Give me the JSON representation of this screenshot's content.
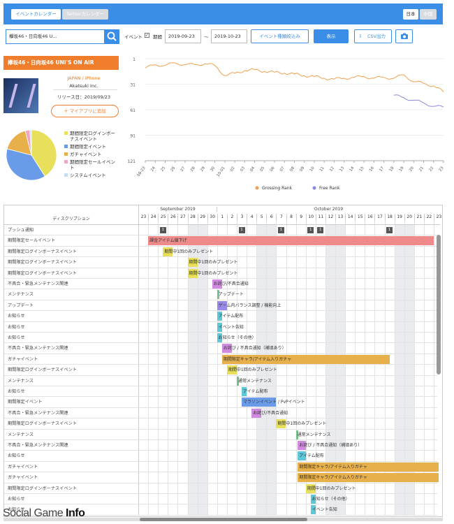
{
  "topbar": {
    "tab_calendar": "イベントカレンダー",
    "tab_twitter": "Twitterカレンダー",
    "lang_ja": "日本",
    "lang_zh": "中国"
  },
  "filter": {
    "search_value": "欅坂46・日向坂46 U...",
    "event_label": "イベント",
    "period_label": "期間",
    "date_from": "2019-09-23",
    "tilde": "〜",
    "date_to": "2019-10-23",
    "type_filter": "イベント種類絞込み",
    "show": "表示",
    "csv": "CSV出力"
  },
  "app": {
    "title": "欅坂46・日向坂46 UNI'S ON AIR",
    "platform": "JAPAN / iPhone",
    "publisher": "Akatsuki Inc.",
    "release": "リリース日：2019/09/23",
    "add_button": "＋ マイアプリに追加"
  },
  "pie": {
    "legend": [
      "期間限定ログインボーナスイベント",
      "期間限定イベント",
      "ガチャイベント",
      "期間限定セールイベント",
      "システムイベント"
    ],
    "colors": [
      "#e8e05a",
      "#6a9be8",
      "#e8b04a",
      "#f2a6c0",
      "#c6ddf2"
    ],
    "values": [
      0.41,
      0.38,
      0.17,
      0.03,
      0.01
    ]
  },
  "chart_data": {
    "type": "line",
    "y_ticks": [
      "1",
      "31",
      "61",
      "91",
      "121"
    ],
    "ylim": [
      1,
      121
    ],
    "x": [
      "09-23",
      "24",
      "25",
      "26",
      "27",
      "28",
      "29",
      "30",
      "10-01",
      "02",
      "03",
      "04",
      "05",
      "06",
      "07",
      "08",
      "09",
      "10",
      "11",
      "12",
      "13",
      "14",
      "15",
      "16",
      "17",
      "18",
      "19",
      "20",
      "21",
      "22",
      "23"
    ],
    "series": [
      {
        "name": "Grossing Rank",
        "color": "#f0a050",
        "values": [
          12,
          8,
          9,
          6,
          8,
          8,
          7,
          9,
          21,
          18,
          15,
          14,
          16,
          17,
          18,
          19,
          21,
          22,
          24,
          25,
          24,
          23,
          22,
          24,
          23,
          24,
          20,
          28,
          30,
          33,
          40
        ]
      },
      {
        "name": "Free Rank",
        "color": "#8a8ae0",
        "values": [
          0,
          0,
          0,
          0,
          0,
          0,
          0,
          0,
          0,
          0,
          0,
          0,
          0,
          0,
          0,
          0,
          0,
          0,
          0,
          0,
          0,
          0,
          0,
          0,
          0,
          44,
          47,
          50,
          53,
          57,
          58
        ]
      }
    ]
  },
  "gantt": {
    "month_sep": "September 2019",
    "month_oct": "October 2019",
    "desc_header": "ディスクリプション",
    "days": [
      "23",
      "24",
      "25",
      "26",
      "27",
      "28",
      "29",
      "30",
      "1",
      "2",
      "3",
      "4",
      "5",
      "6",
      "7",
      "8",
      "9",
      "10",
      "11",
      "12",
      "13",
      "14",
      "15",
      "16",
      "17",
      "18",
      "19",
      "20",
      "21",
      "22",
      "23"
    ],
    "push_row": "プッシュ通知",
    "push_count": "1",
    "rows": [
      {
        "desc": "期間限定セールイベント",
        "bar": "課金アイテム値下げ",
        "s": 1,
        "e": 30,
        "c": "#ee8a8a"
      },
      {
        "desc": "期間限定ログインボーナスイベント",
        "bar": "期間中1回のみプレゼント",
        "s": 2.5,
        "e": 3.5,
        "c": "#e8e05a"
      },
      {
        "desc": "期間限定ログインボーナスイベント",
        "bar": "期間中1回のみプレゼント",
        "s": 5,
        "e": 6,
        "c": "#e8e05a"
      },
      {
        "desc": "期間限定ログインボーナスイベント",
        "bar": "期間中1回のみプレゼント",
        "s": 5,
        "e": 6,
        "c": "#e8e05a"
      },
      {
        "desc": "不具合・緊急メンテナンス関連",
        "bar": "お詫び/不具合通知",
        "s": 7.5,
        "e": 8.5,
        "c": "#d08ae0"
      },
      {
        "desc": "メンテナンス",
        "bar": "アップデート",
        "s": 8,
        "e": 8.2,
        "c": "#7ac08a"
      },
      {
        "desc": "アップデート",
        "bar": "ゲーム内バランス調整 / 機能向上",
        "s": 8,
        "e": 9,
        "c": "#9a8ae8"
      },
      {
        "desc": "お知らせ",
        "bar": "アイテム配布",
        "s": 8,
        "e": 8.5,
        "c": "#5ec8d8"
      },
      {
        "desc": "お知らせ",
        "bar": "イベント告知",
        "s": 8,
        "e": 8.5,
        "c": "#5ec8d8"
      },
      {
        "desc": "お知らせ",
        "bar": "お知らせ（その他）",
        "s": 8,
        "e": 8.5,
        "c": "#5ec8d8"
      },
      {
        "desc": "不具合・緊急メンテナンス関連",
        "bar": "お詫び / 不具合通知（補填あり）",
        "s": 8.5,
        "e": 9.5,
        "c": "#d08ae0"
      },
      {
        "desc": "ガチャイベント",
        "bar": "期間限定キャラ/アイテム入りガチャ",
        "s": 8.5,
        "e": 25.5,
        "c": "#e8b04a"
      },
      {
        "desc": "期間限定ログインボーナスイベント",
        "bar": "期間中1回のみプレゼント",
        "s": 9,
        "e": 10,
        "c": "#e8e05a"
      },
      {
        "desc": "メンテナンス",
        "bar": "通常メンテナンス",
        "s": 10,
        "e": 10.2,
        "c": "#7ac08a"
      },
      {
        "desc": "お知らせ",
        "bar": "アイテム配布",
        "s": 10.5,
        "e": 11,
        "c": "#5ec8d8"
      },
      {
        "desc": "期間限定イベント",
        "bar": "マラソンイベント / PvPイベント",
        "s": 10.5,
        "e": 14,
        "c": "#6a9be8"
      },
      {
        "desc": "不具合・緊急メンテナンス関連",
        "bar": "お詫び/不具合通知",
        "s": 11.5,
        "e": 12.5,
        "c": "#d08ae0"
      },
      {
        "desc": "期間限定ログインボーナスイベント",
        "bar": "期間中1回のみプレゼント",
        "s": 14,
        "e": 15,
        "c": "#e8e05a"
      },
      {
        "desc": "メンテナンス",
        "bar": "通常メンテナンス",
        "s": 16,
        "e": 16.2,
        "c": "#7ac08a"
      },
      {
        "desc": "不具合・緊急メンテナンス関連",
        "bar": "お詫び / 不具合通知（補填あり）",
        "s": 16.2,
        "e": 17,
        "c": "#d08ae0"
      },
      {
        "desc": "お知らせ",
        "bar": "アイテム配布",
        "s": 16.2,
        "e": 17,
        "c": "#5ec8d8"
      },
      {
        "desc": "ガチャイベント",
        "bar": "期間限定キャラ/アイテム入りガチャ",
        "s": 16.2,
        "e": 30.5,
        "c": "#e8b04a"
      },
      {
        "desc": "ガチャイベント",
        "bar": "期間限定キャラ/アイテム入りガチャ",
        "s": 16.2,
        "e": 30.5,
        "c": "#e8b04a"
      },
      {
        "desc": "期間限定ログインボーナスイベント",
        "bar": "期間中1回のみプレゼント",
        "s": 17,
        "e": 18,
        "c": "#e8e05a"
      },
      {
        "desc": "お知らせ",
        "bar": "お知らせ（その他）",
        "s": 17.5,
        "e": 18,
        "c": "#5ec8d8"
      },
      {
        "desc": "お知らせ",
        "bar": "イベント告知",
        "s": 17.5,
        "e": 18,
        "c": "#5ec8d8"
      }
    ]
  },
  "watermark": {
    "a": "Social Game ",
    "b": "Info"
  }
}
